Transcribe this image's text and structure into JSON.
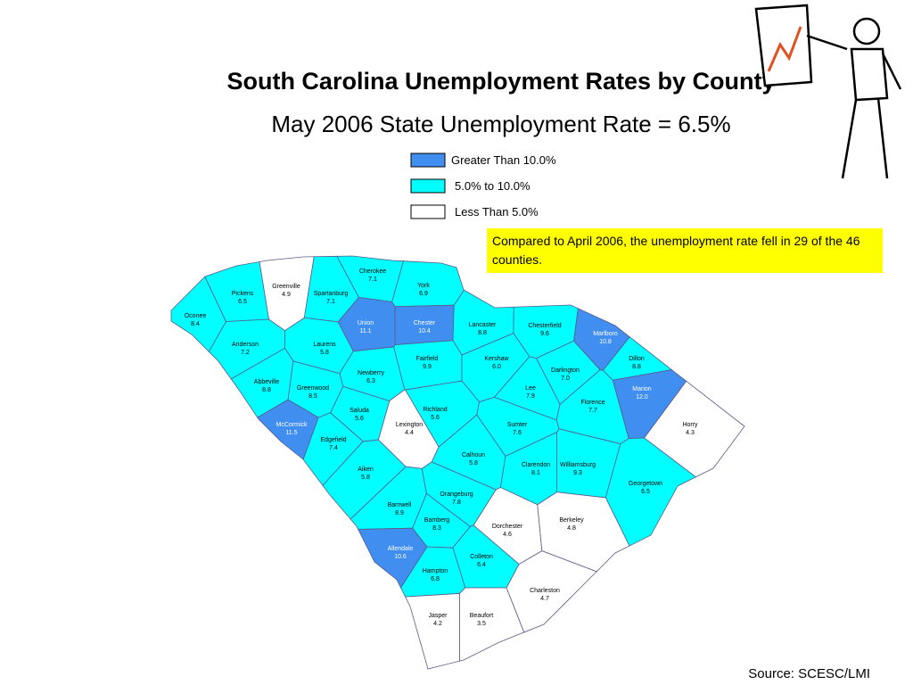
{
  "header": {
    "title": "South Carolina Unemployment Rates by County",
    "subtitle": "May 2006 State Unemployment Rate = 6.5%"
  },
  "legend": [
    {
      "label": "Greater Than 10.0%",
      "color": "#3f8ef0"
    },
    {
      "label": "5.0% to 10.0%",
      "color": "#00ffff"
    },
    {
      "label": "Less Than 5.0%",
      "color": "#ffffff"
    }
  ],
  "note": "Compared to April 2006, the unemployment rate fell in 29 of the 46 counties.",
  "source": "Source: SCESC/LMI",
  "counties": [
    {
      "name": "Oconee",
      "rate": "8.4",
      "color": "#00ffff"
    },
    {
      "name": "Pickens",
      "rate": "6.5",
      "color": "#00ffff"
    },
    {
      "name": "Greenville",
      "rate": "4.9",
      "color": "#ffffff"
    },
    {
      "name": "Spartanburg",
      "rate": "7.1",
      "color": "#00ffff"
    },
    {
      "name": "Cherokee",
      "rate": "7.1",
      "color": "#00ffff"
    },
    {
      "name": "York",
      "rate": "6.9",
      "color": "#00ffff"
    },
    {
      "name": "Chester",
      "rate": "10.4",
      "color": "#3f8ef0"
    },
    {
      "name": "Union",
      "rate": "11.1",
      "color": "#3f8ef0"
    },
    {
      "name": "Lancaster",
      "rate": "8.8",
      "color": "#00ffff"
    },
    {
      "name": "Chesterfield",
      "rate": "9.6",
      "color": "#00ffff"
    },
    {
      "name": "Marlboro",
      "rate": "10.8",
      "color": "#3f8ef0"
    },
    {
      "name": "Dillon",
      "rate": "8.8",
      "color": "#00ffff"
    },
    {
      "name": "Marion",
      "rate": "12.0",
      "color": "#3f8ef0"
    },
    {
      "name": "Horry",
      "rate": "4.3",
      "color": "#ffffff"
    },
    {
      "name": "Anderson",
      "rate": "7.2",
      "color": "#00ffff"
    },
    {
      "name": "Laurens",
      "rate": "5.8",
      "color": "#00ffff"
    },
    {
      "name": "Newberry",
      "rate": "6.3",
      "color": "#00ffff"
    },
    {
      "name": "Fairfield",
      "rate": "9.9",
      "color": "#00ffff"
    },
    {
      "name": "Kershaw",
      "rate": "6.0",
      "color": "#00ffff"
    },
    {
      "name": "Darlington",
      "rate": "7.0",
      "color": "#00ffff"
    },
    {
      "name": "Lee",
      "rate": "7.9",
      "color": "#00ffff"
    },
    {
      "name": "Florence",
      "rate": "7.7",
      "color": "#00ffff"
    },
    {
      "name": "Abbeville",
      "rate": "8.8",
      "color": "#00ffff"
    },
    {
      "name": "Greenwood",
      "rate": "8.5",
      "color": "#00ffff"
    },
    {
      "name": "Saluda",
      "rate": "5.6",
      "color": "#00ffff"
    },
    {
      "name": "Richland",
      "rate": "5.6",
      "color": "#00ffff"
    },
    {
      "name": "Sumter",
      "rate": "7.6",
      "color": "#00ffff"
    },
    {
      "name": "McCormick",
      "rate": "11.5",
      "color": "#3f8ef0"
    },
    {
      "name": "Edgefield",
      "rate": "7.4",
      "color": "#00ffff"
    },
    {
      "name": "Lexington",
      "rate": "4.4",
      "color": "#ffffff"
    },
    {
      "name": "Calhoun",
      "rate": "5.8",
      "color": "#00ffff"
    },
    {
      "name": "Clarendon",
      "rate": "8.1",
      "color": "#00ffff"
    },
    {
      "name": "Williamsburg",
      "rate": "9.3",
      "color": "#00ffff"
    },
    {
      "name": "Georgetown",
      "rate": "6.5",
      "color": "#00ffff"
    },
    {
      "name": "Aiken",
      "rate": "5.8",
      "color": "#00ffff"
    },
    {
      "name": "Orangeburg",
      "rate": "7.8",
      "color": "#00ffff"
    },
    {
      "name": "Barnwell",
      "rate": "8.9",
      "color": "#00ffff"
    },
    {
      "name": "Bamberg",
      "rate": "8.3",
      "color": "#00ffff"
    },
    {
      "name": "Dorchester",
      "rate": "4.6",
      "color": "#ffffff"
    },
    {
      "name": "Berkeley",
      "rate": "4.8",
      "color": "#ffffff"
    },
    {
      "name": "Allendale",
      "rate": "10.6",
      "color": "#3f8ef0"
    },
    {
      "name": "Colleton",
      "rate": "6.4",
      "color": "#00ffff"
    },
    {
      "name": "Hampton",
      "rate": "6.8",
      "color": "#00ffff"
    },
    {
      "name": "Charleston",
      "rate": "4.7",
      "color": "#ffffff"
    },
    {
      "name": "Jasper",
      "rate": "4.2",
      "color": "#ffffff"
    },
    {
      "name": "Beaufort",
      "rate": "3.5",
      "color": "#ffffff"
    }
  ]
}
